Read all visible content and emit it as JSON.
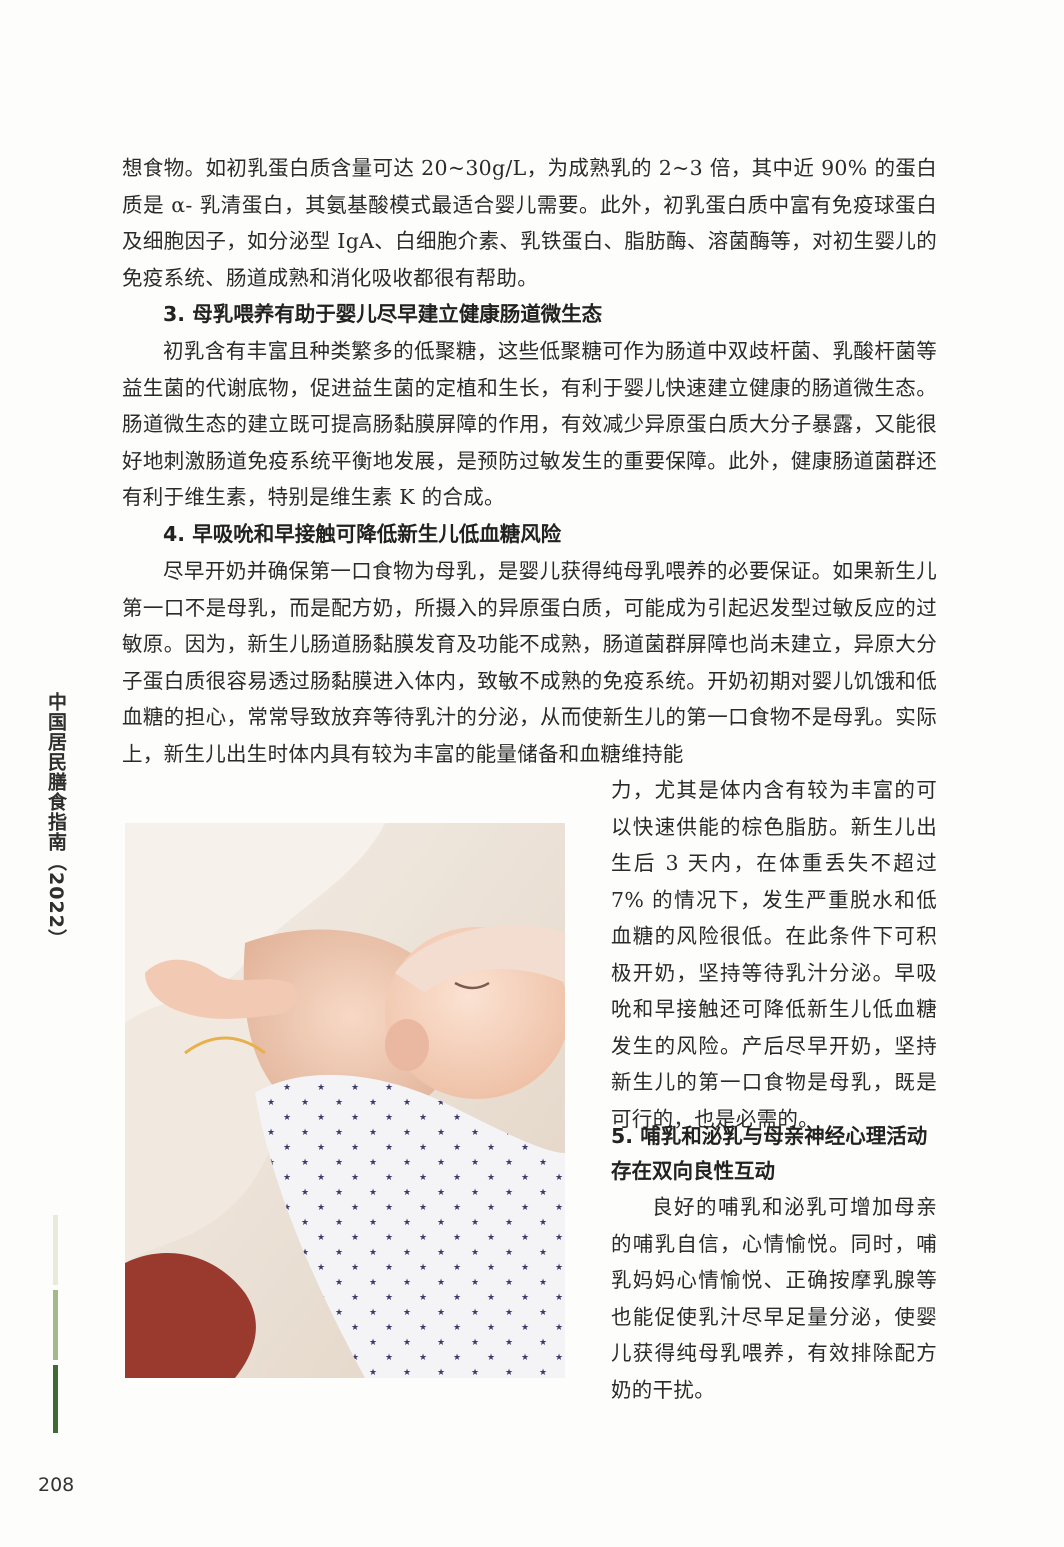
{
  "paragraph_1": "想食物。如初乳蛋白质含量可达 20~30g/L，为成熟乳的 2~3 倍，其中近 90% 的蛋白质是 α- 乳清蛋白，其氨基酸模式最适合婴儿需要。此外，初乳蛋白质中富有免疫球蛋白及细胞因子，如分泌型 IgA、白细胞介素、乳铁蛋白、脂肪酶、溶菌酶等，对初生婴儿的免疫系统、肠道成熟和消化吸收都很有帮助。",
  "heading_3": "3. 母乳喂养有助于婴儿尽早建立健康肠道微生态",
  "paragraph_3": "初乳含有丰富且种类繁多的低聚糖，这些低聚糖可作为肠道中双歧杆菌、乳酸杆菌等益生菌的代谢底物，促进益生菌的定植和生长，有利于婴儿快速建立健康的肠道微生态。肠道微生态的建立既可提高肠黏膜屏障的作用，有效减少异原蛋白质大分子暴露，又能很好地刺激肠道免疫系统平衡地发展，是预防过敏发生的重要保障。此外，健康肠道菌群还有利于维生素，特别是维生素 K 的合成。",
  "heading_4": "4. 早吸吮和早接触可降低新生儿低血糖风险",
  "paragraph_4_full": "尽早开奶并确保第一口食物为母乳，是婴儿获得纯母乳喂养的必要保证。如果新生儿第一口不是母乳，而是配方奶，所摄入的异原蛋白质，可能成为引起迟发型过敏反应的过敏原。因为，新生儿肠道肠黏膜发育及功能不成熟，肠道菌群屏障也尚未建立，异原大分子蛋白质很容易透过肠黏膜进入体内，致敏不成熟的免疫系统。开奶初期对婴儿饥饿和低血糖的担心，常常导致放弃等待乳汁的分泌，从而使新生儿的第一口食物不是母乳。实际上，新生儿出生时体内具有较为丰富的能量储备和血糖维持能",
  "paragraph_4_side": "力，尤其是体内含有较为丰富的可以快速供能的棕色脂肪。新生儿出生后 3 天内，在体重丢失不超过 7% 的情况下，发生严重脱水和低血糖的风险很低。在此条件下可积极开奶，坚持等待乳汁分泌。早吸吮和早接触还可降低新生儿低血糖发生的风险。产后尽早开奶，坚持新生儿的第一口食物是母乳，既是可行的，也是必需的。",
  "heading_5": "5. 哺乳和泌乳与母亲神经心理活动存在双向良性互动",
  "paragraph_5": "良好的哺乳和泌乳可增加母亲的哺乳自信，心情愉悦。同时，哺乳妈妈心情愉悦、正确按摩乳腺等也能促使乳汁尽早足量分泌，使婴儿获得纯母乳喂养，有效排除配方奶的干扰。",
  "side_title": "中国居民膳食指南（2022）",
  "page_number": "208",
  "colors": {
    "text": "#2a2a2a",
    "bar_light": "#e6ecd9",
    "bar_mid": "#a4b98a",
    "bar_dark": "#3f6a33"
  }
}
